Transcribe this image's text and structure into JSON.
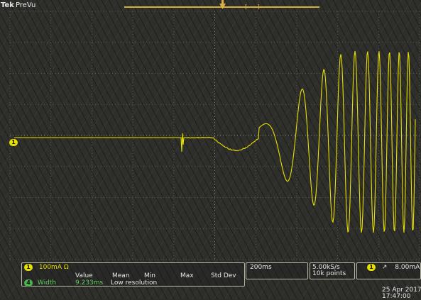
{
  "header": {
    "brand": "Tek",
    "mode": "PreVu",
    "record_ticks": "[ ]"
  },
  "channel1": {
    "badge": "1",
    "scale": "100mA",
    "ohm": "Ω",
    "color": "#e8e000"
  },
  "measurement": {
    "badge": "4",
    "label": "Width",
    "columns": [
      "Value",
      "Mean",
      "Min",
      "Max",
      "Std Dev"
    ],
    "value": "9.233ms",
    "note": "Low resolution",
    "color": "#5fd25f"
  },
  "timebase": {
    "scale": "200ms"
  },
  "acquisition": {
    "rate": "5.00kS/s",
    "points": "10k points"
  },
  "trigger": {
    "channel": "1",
    "slope": "↗",
    "level": "8.00mA"
  },
  "datetime": {
    "date": "25 Apr 2017",
    "time": "17:47:00"
  },
  "waveform": {
    "description_samples": "normalized trace: flat baseline, small spike, dip, then growing oscillation",
    "color": "#e8e000"
  }
}
